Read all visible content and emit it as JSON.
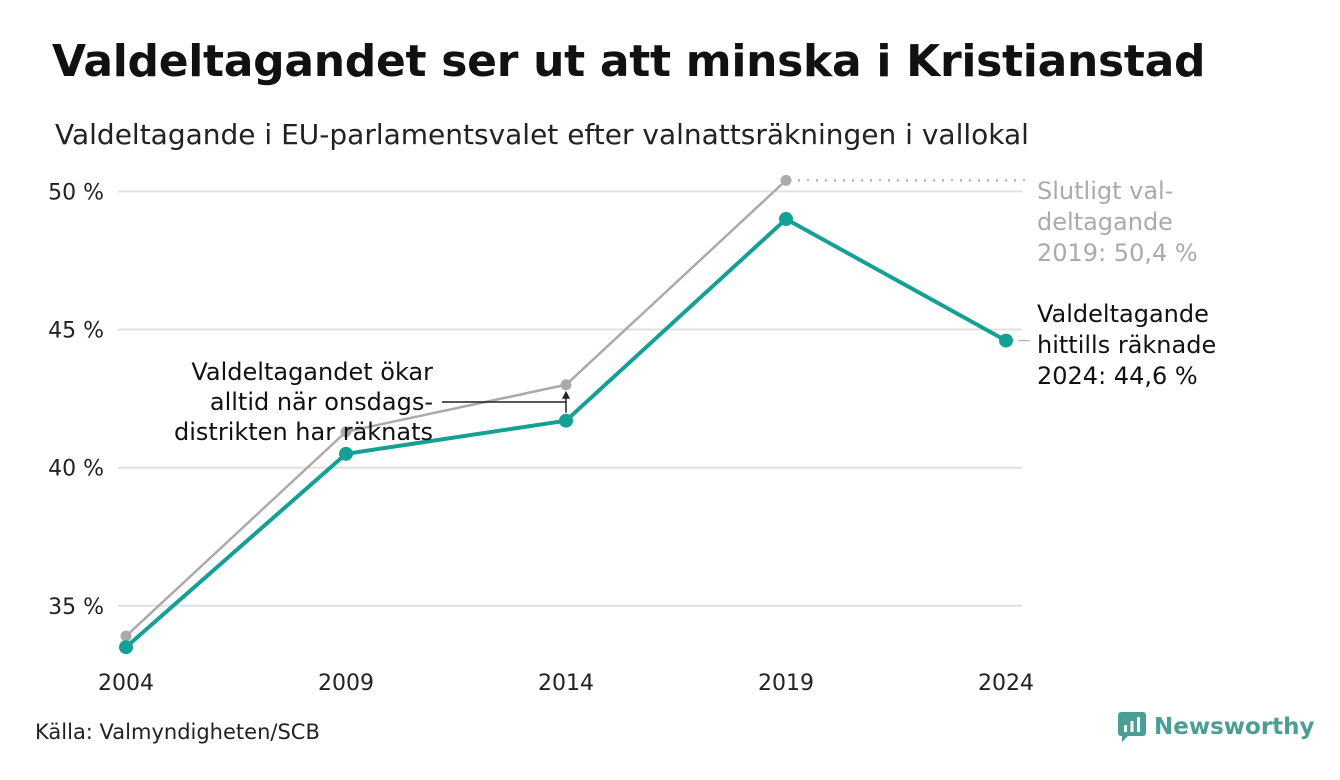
{
  "title": "Valdeltagandet ser ut att minska i Kristianstad",
  "subtitle": "Valdeltagande i EU-parlamentsvalet efter valnattsräkningen i vallokal",
  "source": "Källa: Valmyndigheten/SCB",
  "brand": {
    "name": "Newsworthy",
    "icon": "newsworthy-logo-icon",
    "color": "#4a9e94"
  },
  "colors": {
    "main": "#14a095",
    "final": "#aaaaaa",
    "grid": "#e0e0e0",
    "text": "#111111",
    "muted": "#aaaaaa"
  },
  "chart_data": {
    "type": "line",
    "x": [
      "2004",
      "2009",
      "2014",
      "2019",
      "2024"
    ],
    "ylim": [
      33,
      51.5
    ],
    "y_ticks": [
      35,
      40,
      45,
      50
    ],
    "y_tick_labels": [
      "35 %",
      "40 %",
      "45 %",
      "50 %"
    ],
    "grid": true,
    "series": [
      {
        "key": "final",
        "values": [
          33.9,
          41.3,
          43.0,
          50.4,
          null
        ]
      },
      {
        "key": "election_night",
        "values": [
          33.5,
          40.5,
          41.7,
          49.0,
          44.6
        ]
      }
    ],
    "annotations": {
      "final_2019": [
        "Slutligt val-",
        "deltagande",
        "2019: 50,4 %"
      ],
      "current_2024": [
        "Valdeltagande",
        "hittills räknade",
        "2024: 44,6 %"
      ],
      "onsdag": [
        "Valdeltagandet ökar",
        "alltid när onsdags-",
        "distrikten har räknats"
      ]
    }
  }
}
